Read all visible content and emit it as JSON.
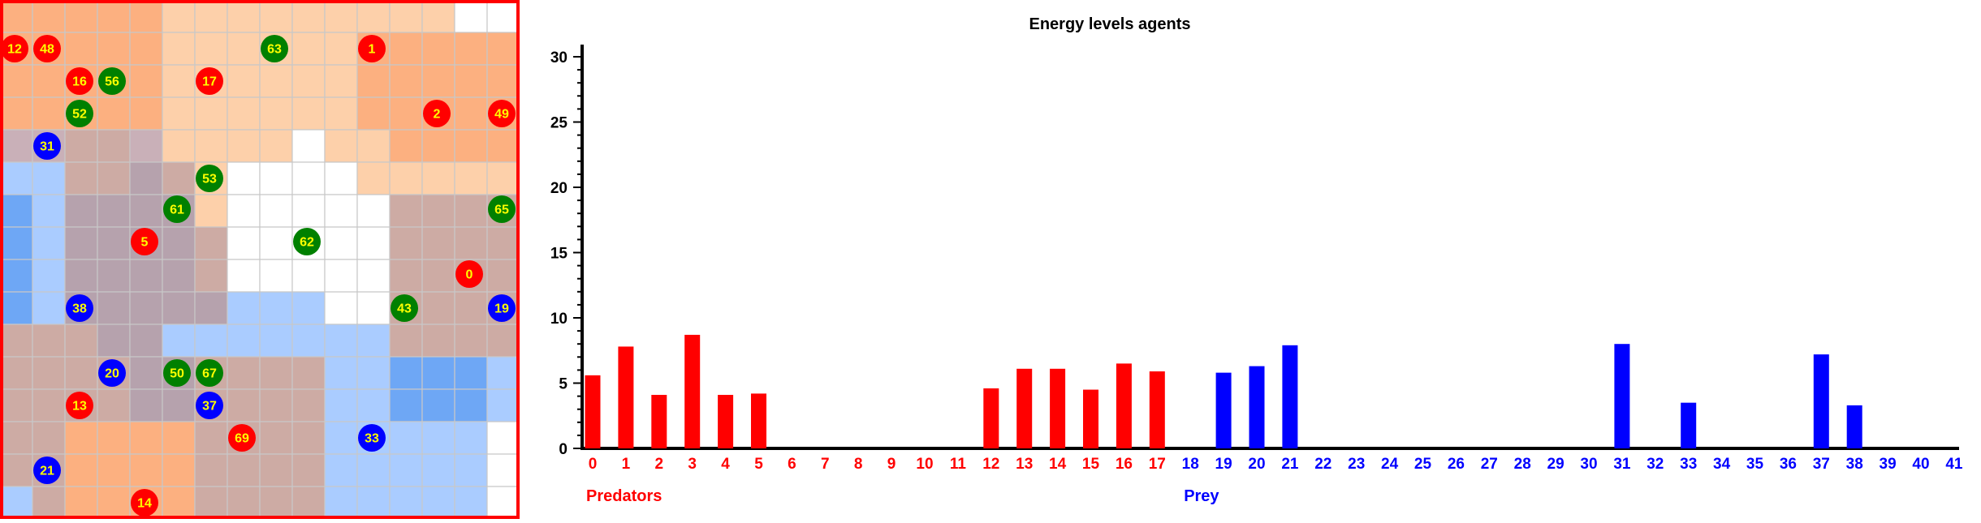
{
  "grid_panel": {
    "border_color": "#ff0000",
    "legend": {
      "predator_color": "#ff0000",
      "prey_color": "#0000ff",
      "food_color": "#008000",
      "label_color": "#ffff00"
    },
    "agents": [
      {
        "label": "12",
        "kind": "predator"
      },
      {
        "label": "48",
        "kind": "predator"
      },
      {
        "label": "63",
        "kind": "food"
      },
      {
        "label": "1",
        "kind": "predator"
      },
      {
        "label": "16",
        "kind": "predator"
      },
      {
        "label": "56",
        "kind": "food"
      },
      {
        "label": "17",
        "kind": "predator"
      },
      {
        "label": "52",
        "kind": "food"
      },
      {
        "label": "2",
        "kind": "predator"
      },
      {
        "label": "49",
        "kind": "predator"
      },
      {
        "label": "31",
        "kind": "prey"
      },
      {
        "label": "53",
        "kind": "food"
      },
      {
        "label": "61",
        "kind": "food"
      },
      {
        "label": "65",
        "kind": "food"
      },
      {
        "label": "5",
        "kind": "predator"
      },
      {
        "label": "62",
        "kind": "food"
      },
      {
        "label": "0",
        "kind": "predator"
      },
      {
        "label": "38",
        "kind": "prey"
      },
      {
        "label": "43",
        "kind": "food"
      },
      {
        "label": "19",
        "kind": "prey"
      },
      {
        "label": "20",
        "kind": "prey"
      },
      {
        "label": "50",
        "kind": "food"
      },
      {
        "label": "67",
        "kind": "food"
      },
      {
        "label": "13",
        "kind": "predator"
      },
      {
        "label": "37",
        "kind": "prey"
      },
      {
        "label": "69",
        "kind": "predator"
      },
      {
        "label": "33",
        "kind": "prey"
      },
      {
        "label": "21",
        "kind": "prey"
      },
      {
        "label": "14",
        "kind": "predator"
      }
    ]
  },
  "chart_data": {
    "type": "bar",
    "title": "Energy levels agents",
    "ylim": [
      0,
      30
    ],
    "yticks": [
      "0",
      "5",
      "10",
      "15",
      "20",
      "25",
      "30"
    ],
    "grid": false,
    "categories": [
      "0",
      "1",
      "2",
      "3",
      "4",
      "5",
      "6",
      "7",
      "8",
      "9",
      "10",
      "11",
      "12",
      "13",
      "14",
      "15",
      "16",
      "17",
      "18",
      "19",
      "20",
      "21",
      "22",
      "23",
      "24",
      "25",
      "26",
      "27",
      "28",
      "29",
      "30",
      "31",
      "32",
      "33",
      "34",
      "35",
      "36",
      "37",
      "38",
      "39",
      "40",
      "41"
    ],
    "category_groups": [
      {
        "label": "Predators",
        "from": 0,
        "to": 17,
        "color": "#ff0000"
      },
      {
        "label": "Prey",
        "from": 18,
        "to": 41,
        "color": "#0000ff"
      }
    ],
    "values": [
      5.6,
      7.8,
      4.1,
      8.7,
      4.1,
      4.2,
      0,
      0,
      0,
      0,
      0,
      0,
      4.6,
      6.1,
      6.1,
      4.5,
      6.5,
      5.9,
      0,
      5.8,
      6.3,
      7.9,
      0,
      0,
      0,
      0,
      0,
      0,
      0,
      0,
      0,
      8.0,
      0,
      3.5,
      0,
      0,
      0,
      7.2,
      3.3,
      0,
      0,
      0
    ]
  }
}
